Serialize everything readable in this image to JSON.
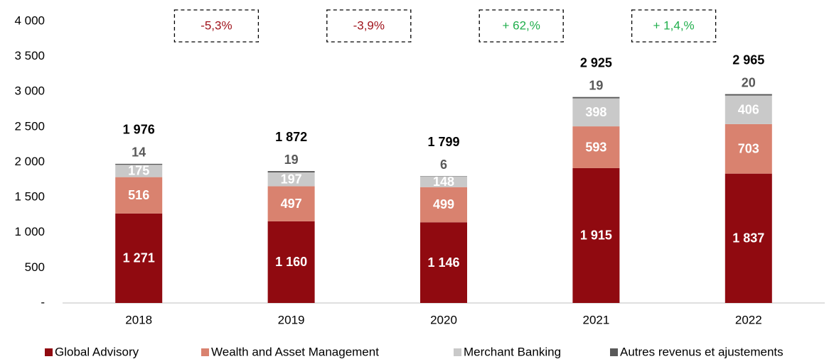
{
  "chart_data": {
    "type": "stacked_bar",
    "categories": [
      "2018",
      "2019",
      "2020",
      "2021",
      "2022"
    ],
    "series": [
      {
        "name": "Global Advisory",
        "color": "#900a10",
        "values": [
          1271,
          1160,
          1146,
          1915,
          1837
        ],
        "value_labels": [
          "1 271",
          "1 160",
          "1 146",
          "1 915",
          "1 837"
        ]
      },
      {
        "name": "Wealth and Asset Management",
        "color": "#d9826f",
        "values": [
          516,
          497,
          499,
          593,
          703
        ]
      },
      {
        "name": "Merchant Banking",
        "color": "#c9c9c9",
        "values": [
          175,
          197,
          148,
          398,
          406
        ]
      },
      {
        "name": "Autres revenus et ajustements",
        "color": "#595959",
        "values": [
          14,
          19,
          6,
          19,
          20
        ]
      }
    ],
    "totals": [
      1976,
      1872,
      1799,
      2925,
      2965
    ],
    "total_labels": [
      "1 976",
      "1 872",
      "1 799",
      "2 925",
      "2 965"
    ],
    "annotations": [
      {
        "text": "-5,3%",
        "color": "#a0141c"
      },
      {
        "text": "-3,9%",
        "color": "#a0141c"
      },
      {
        "text": "+ 62,%",
        "color": "#1fae4b"
      },
      {
        "text": "+ 1,4,%",
        "color": "#1fae4b"
      }
    ],
    "ylim": [
      0,
      4000
    ],
    "yticks": [
      {
        "value": 0,
        "label": "-"
      },
      500,
      {
        "value": 1000,
        "label": "1 000"
      },
      {
        "value": 1500,
        "label": "1 500"
      },
      {
        "value": 2000,
        "label": "2 000"
      },
      {
        "value": 2500,
        "label": "2 500"
      },
      {
        "value": 3000,
        "label": "3 000"
      },
      {
        "value": 3500,
        "label": "3 500"
      },
      {
        "value": 4000,
        "label": "4 000"
      }
    ],
    "legend": "bottom"
  }
}
